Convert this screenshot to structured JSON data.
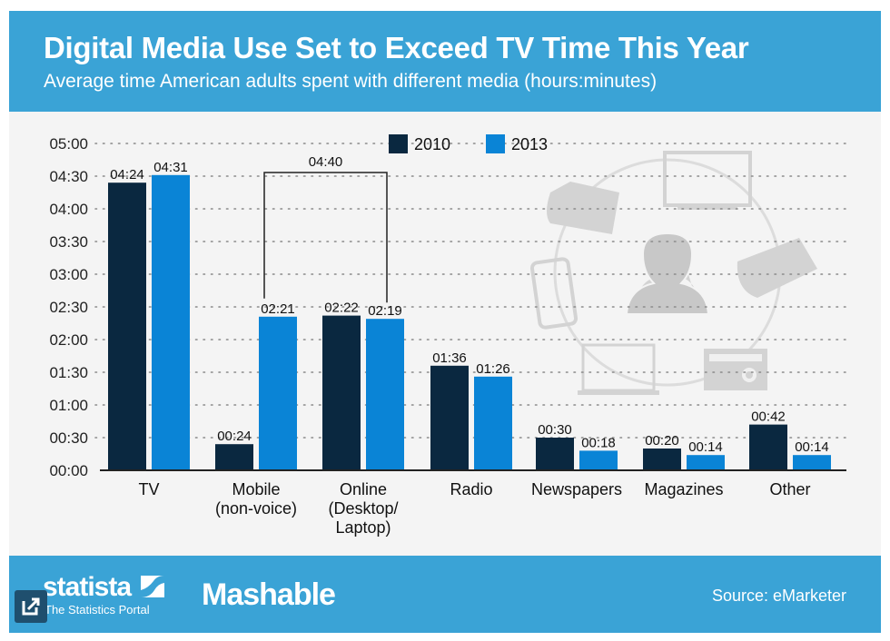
{
  "header": {
    "title": "Digital Media Use Set to Exceed TV Time This Year",
    "subtitle": "Average time American adults spent with different media (hours:minutes)"
  },
  "footer": {
    "statista_logo": "statista",
    "statista_tagline": "The Statistics Portal",
    "mashable_logo": "Mashable",
    "source": "Source: eMarketer",
    "share_icon": "external-link-icon"
  },
  "colors": {
    "header_bg": "#3aa3d6",
    "series_2010": "#0a2840",
    "series_2013": "#0a84d6",
    "plot_bg": "#f4f4f4"
  },
  "chart_data": {
    "type": "bar",
    "title": "Digital Media Use Set to Exceed TV Time This Year",
    "subtitle": "Average time American adults spent with different media (hours:minutes)",
    "xlabel": "",
    "ylabel": "",
    "units": "minutes",
    "ylim": [
      0,
      300
    ],
    "yticks": [
      0,
      30,
      60,
      90,
      120,
      150,
      180,
      210,
      240,
      270,
      300
    ],
    "ytick_labels": [
      "00:00",
      "00:30",
      "01:00",
      "01:30",
      "02:00",
      "02:30",
      "03:00",
      "03:30",
      "04:00",
      "04:30",
      "05:00"
    ],
    "grid": true,
    "legend_position": "top-center",
    "categories": [
      [
        "TV"
      ],
      [
        "Mobile",
        "(non-voice)"
      ],
      [
        "Online",
        "(Desktop/",
        "Laptop)"
      ],
      [
        "Radio"
      ],
      [
        "Newspapers"
      ],
      [
        "Magazines"
      ],
      [
        "Other"
      ]
    ],
    "series": [
      {
        "name": "2010",
        "color": "#0a2840",
        "values": [
          264,
          24,
          142,
          96,
          30,
          20,
          42
        ],
        "labels": [
          "04:24",
          "00:24",
          "02:22",
          "01:36",
          "00:30",
          "00:20",
          "00:42"
        ]
      },
      {
        "name": "2013",
        "color": "#0a84d6",
        "values": [
          271,
          141,
          139,
          86,
          18,
          14,
          14
        ],
        "labels": [
          "04:31",
          "02:21",
          "02:19",
          "01:26",
          "00:18",
          "00:14",
          "00:14"
        ]
      }
    ],
    "annotations": [
      {
        "type": "bracket",
        "text": "04:40",
        "from": "2013 Mobile (non-voice)",
        "to": "2013 Online (Desktop/Laptop)",
        "value_minutes": 280
      }
    ],
    "background_illustration": [
      "people-icon",
      "tv-icon",
      "newspaper-icon",
      "radio-icon",
      "laptop-icon",
      "smartphone-icon",
      "magazine-icon"
    ]
  }
}
